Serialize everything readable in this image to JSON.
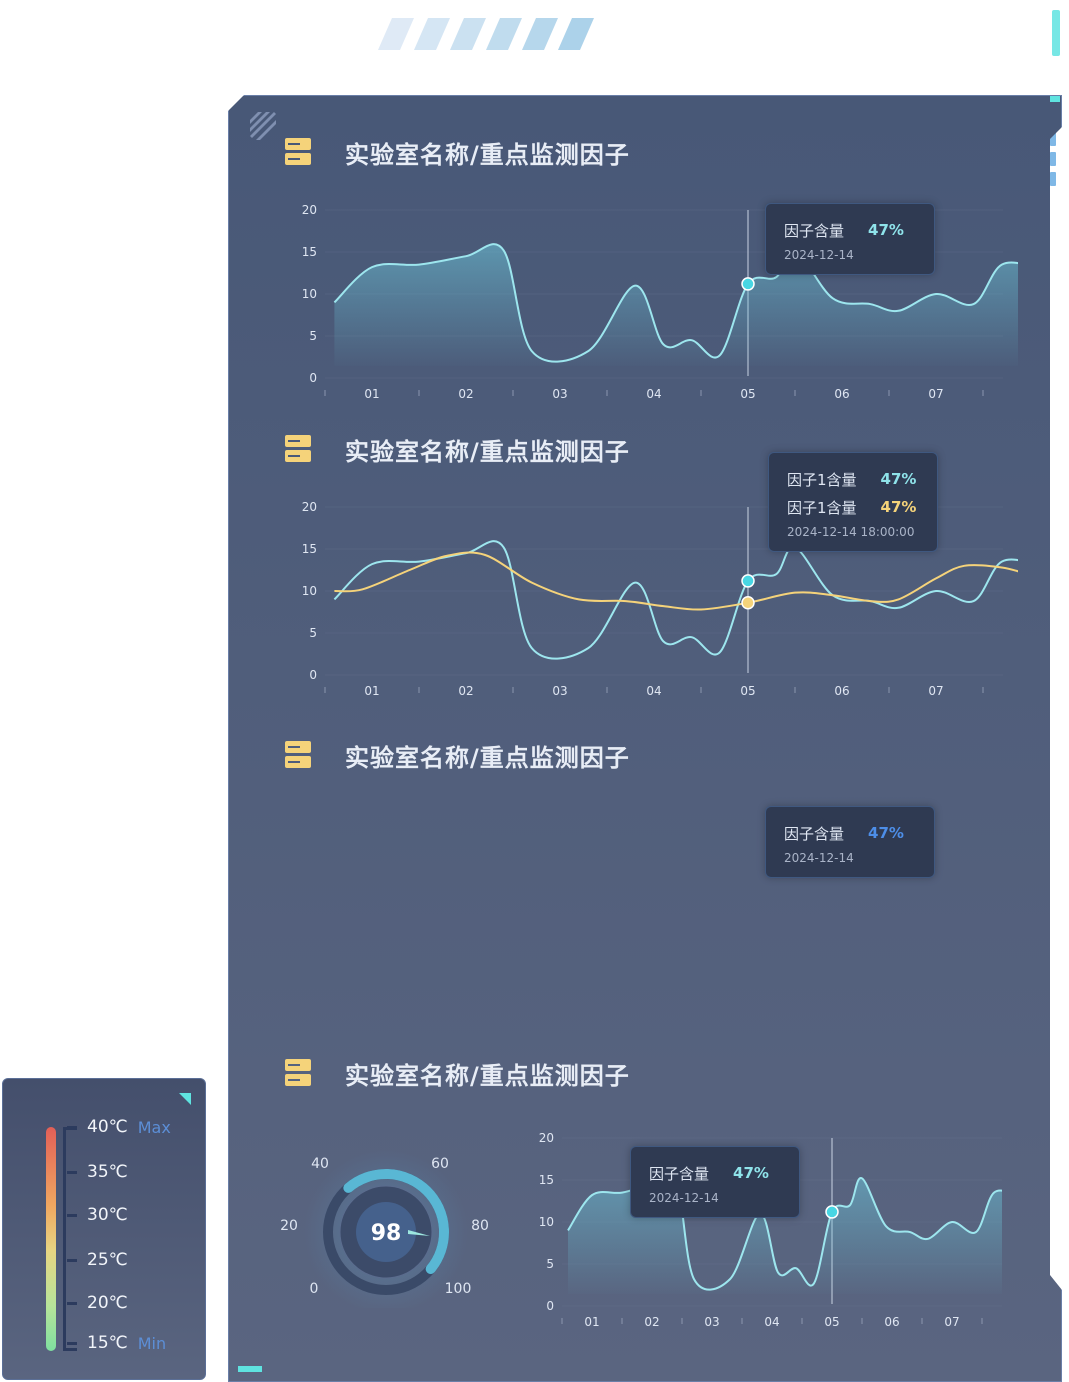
{
  "sections": [
    {
      "title": "实验室名称/重点监测因子"
    },
    {
      "title": "实验室名称/重点监测因子"
    },
    {
      "title": "实验室名称/重点监测因子"
    },
    {
      "title": "实验室名称/重点监测因子"
    }
  ],
  "chart_data": [
    {
      "type": "area",
      "categories": [
        "01",
        "02",
        "03",
        "04",
        "05",
        "06",
        "07"
      ],
      "ylim": [
        0,
        20
      ],
      "yticks": [
        0,
        5,
        10,
        15,
        20
      ],
      "series": [
        {
          "x": [
            0.1,
            0.5,
            1.0,
            1.5,
            1.9,
            2.2,
            2.8,
            3.3,
            3.6,
            3.9,
            4.2,
            4.5,
            4.8,
            5.0,
            5.4,
            5.8,
            6.1,
            6.5,
            6.9,
            7.2,
            7.6,
            7.8
          ],
          "values": [
            9,
            13.2,
            13.5,
            14.5,
            15.2,
            3.2,
            3.2,
            11,
            4,
            4.5,
            2.7,
            11.2,
            12,
            15.2,
            9.5,
            8.8,
            8,
            10,
            8.8,
            13.5,
            13,
            12
          ]
        }
      ],
      "highlight_index": 4,
      "tooltip": {
        "label": "因子含量",
        "value": "47%",
        "date": "2024-12-14"
      }
    },
    {
      "type": "line",
      "categories": [
        "01",
        "02",
        "03",
        "04",
        "05",
        "06",
        "07"
      ],
      "ylim": [
        0,
        20
      ],
      "yticks": [
        0,
        5,
        10,
        15,
        20
      ],
      "series": [
        {
          "x": [
            0.1,
            0.5,
            1.0,
            1.5,
            1.9,
            2.2,
            2.8,
            3.3,
            3.6,
            3.9,
            4.2,
            4.5,
            4.8,
            5.0,
            5.4,
            5.8,
            6.1,
            6.5,
            6.9,
            7.2,
            7.6,
            7.8
          ],
          "values": [
            9,
            13.2,
            13.5,
            14.5,
            15.2,
            3.2,
            3.2,
            11,
            4,
            4.5,
            2.7,
            11.2,
            12,
            15.2,
            9.5,
            8.8,
            8,
            10,
            8.8,
            13.5,
            13,
            12
          ]
        },
        {
          "x": [
            0.1,
            0.4,
            0.9,
            1.3,
            1.7,
            2.2,
            2.7,
            3.2,
            3.6,
            4.0,
            4.5,
            5.0,
            5.4,
            5.8,
            6.1,
            6.5,
            6.8,
            7.2,
            7.5,
            7.8
          ],
          "values": [
            10,
            10.2,
            12.5,
            14.2,
            14.3,
            11,
            9,
            8.8,
            8.2,
            7.8,
            8.6,
            9.8,
            9.5,
            8.8,
            9,
            11.5,
            13,
            12.8,
            12,
            11.8
          ]
        }
      ],
      "highlight_index": 4,
      "tooltip": {
        "rows": [
          {
            "label": "因子1含量",
            "value": "47%"
          },
          {
            "label": "因子1含量",
            "value": "47%"
          }
        ],
        "date": "2024-12-14 18:00:00"
      }
    },
    {
      "type": "area",
      "categories": [],
      "tooltip": {
        "label": "因子含量",
        "value": "47%",
        "date": "2024-12-14"
      }
    },
    {
      "type": "area",
      "categories": [
        "01",
        "02",
        "03",
        "04",
        "05",
        "06",
        "07"
      ],
      "ylim": [
        0,
        20
      ],
      "yticks": [
        0,
        5,
        10,
        15,
        20
      ],
      "series": [
        {
          "x": [
            0.1,
            0.5,
            1.0,
            1.5,
            1.9,
            2.2,
            2.8,
            3.3,
            3.6,
            3.9,
            4.2,
            4.5,
            4.8,
            5.0,
            5.4,
            5.8,
            6.1,
            6.5,
            6.9,
            7.2,
            7.6,
            7.8
          ],
          "values": [
            9,
            13.2,
            13.5,
            14.5,
            15.2,
            3.2,
            3.2,
            11,
            4,
            4.5,
            2.7,
            11.2,
            12,
            15.2,
            9.5,
            8.8,
            8,
            10,
            8.8,
            13.5,
            13,
            12
          ]
        }
      ],
      "highlight_index": 4,
      "tooltip": {
        "label": "因子含量",
        "value": "47%",
        "date": "2024-12-14"
      }
    }
  ],
  "gauge": {
    "value": "98",
    "ticks": [
      "0",
      "20",
      "40",
      "60",
      "80",
      "100"
    ]
  },
  "thermometer": {
    "ticks": [
      "40℃",
      "35℃",
      "30℃",
      "25℃",
      "20℃",
      "15℃"
    ],
    "max_label": "Max",
    "min_label": "Min"
  },
  "colors": {
    "cyan": "#8fe3ea",
    "yellow": "#f5d37a",
    "blue": "#4d8ee8",
    "point": "#48d6e3"
  }
}
